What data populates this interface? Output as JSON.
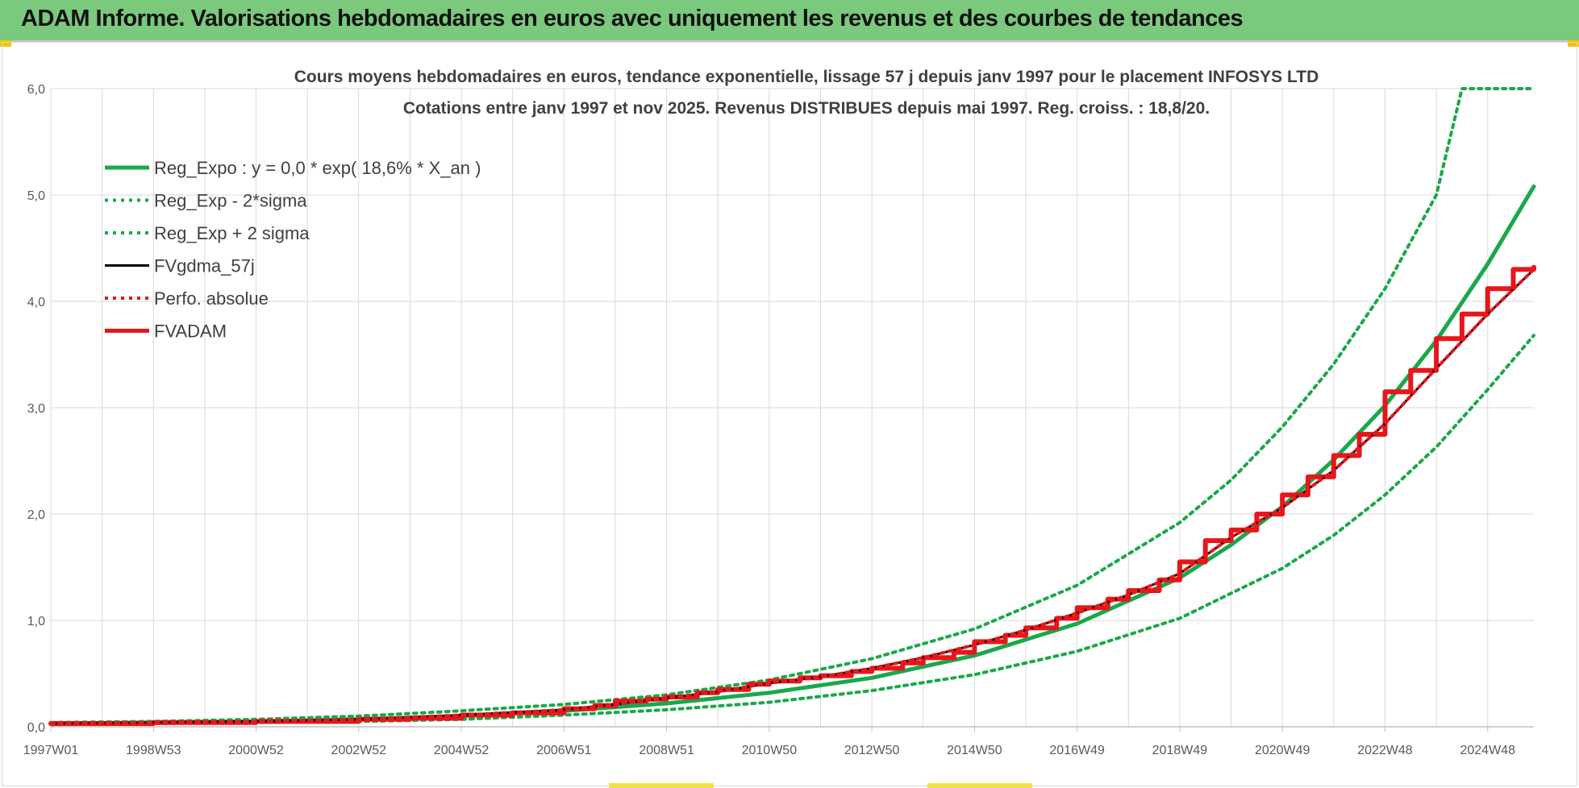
{
  "banner": {
    "title": "ADAM Informe. Valorisations hebdomadaires en euros avec uniquement les revenus et des courbes de tendances"
  },
  "colors": {
    "banner_bg": "#7ac97d",
    "green": "#1aa84a",
    "red": "#e8161b",
    "black": "#000000",
    "grid": "#d9d9d9"
  },
  "chart_data": {
    "type": "line",
    "title_line1": "Cours moyens hebdomadaires en euros, tendance exponentielle, lissage 57 j depuis janv 1997  pour le placement INFOSYS LTD",
    "title_line2": "Cotations entre janv 1997 et nov 2025. Revenus DISTRIBUES depuis mai 1997.  Reg. croiss. : 18,8/20.",
    "x_tick_labels": [
      "1997W01",
      "1998W53",
      "2000W52",
      "2002W52",
      "2004W52",
      "2006W51",
      "2008W51",
      "2010W50",
      "2012W50",
      "2014W50",
      "2016W49",
      "2018W49",
      "2020W49",
      "2022W48",
      "2024W48"
    ],
    "y_tick_labels": [
      "0,0",
      "1,0",
      "2,0",
      "3,0",
      "4,0",
      "5,0",
      "6,0"
    ],
    "ylim": [
      0,
      6
    ],
    "xlim": [
      1997.0,
      2025.9
    ],
    "grid": true,
    "legend_position": "top-left",
    "series": [
      {
        "name": "Reg_Expo : y = 0,0 * exp( 18,6% *  X_an )",
        "style": "solid-thick",
        "color": "#1aa84a",
        "x": [
          1997,
          1999,
          2001,
          2003,
          2005,
          2007,
          2009,
          2011,
          2013,
          2015,
          2017,
          2019,
          2020,
          2021,
          2022,
          2023,
          2024,
          2025,
          2025.9
        ],
        "values": [
          0.03,
          0.04,
          0.05,
          0.07,
          0.1,
          0.15,
          0.22,
          0.32,
          0.46,
          0.67,
          0.97,
          1.4,
          1.71,
          2.07,
          2.51,
          3.02,
          3.63,
          4.35,
          5.08
        ]
      },
      {
        "name": "Reg_Exp - 2*sigma",
        "style": "dotted",
        "color": "#1aa84a",
        "x": [
          1997,
          1999,
          2001,
          2003,
          2005,
          2007,
          2009,
          2011,
          2013,
          2015,
          2017,
          2019,
          2021,
          2022,
          2023,
          2024,
          2025,
          2025.9
        ],
        "values": [
          0.02,
          0.03,
          0.04,
          0.05,
          0.07,
          0.11,
          0.16,
          0.23,
          0.34,
          0.49,
          0.71,
          1.02,
          1.49,
          1.8,
          2.18,
          2.63,
          3.17,
          3.68
        ]
      },
      {
        "name": "Reg_Exp + 2 sigma",
        "style": "dotted",
        "color": "#1aa84a",
        "x": [
          1997,
          1999,
          2001,
          2003,
          2005,
          2007,
          2009,
          2011,
          2013,
          2015,
          2017,
          2019,
          2020,
          2021,
          2022,
          2023,
          2024,
          2024.5,
          2025.9
        ],
        "values": [
          0.04,
          0.05,
          0.07,
          0.1,
          0.15,
          0.21,
          0.3,
          0.44,
          0.64,
          0.92,
          1.33,
          1.92,
          2.32,
          2.82,
          3.41,
          4.12,
          5.0,
          6.0,
          6.0
        ]
      },
      {
        "name": "FVgdma_57j",
        "style": "solid",
        "color": "#000000",
        "x": [
          1997,
          1999,
          2001,
          2003,
          2005,
          2007,
          2008,
          2009,
          2010,
          2011,
          2012,
          2013,
          2014,
          2015,
          2016,
          2017,
          2018,
          2019,
          2020,
          2021,
          2022,
          2023,
          2024,
          2025,
          2025.9
        ],
        "values": [
          0.03,
          0.04,
          0.05,
          0.07,
          0.11,
          0.16,
          0.21,
          0.27,
          0.33,
          0.41,
          0.47,
          0.55,
          0.65,
          0.77,
          0.91,
          1.07,
          1.24,
          1.44,
          1.78,
          2.06,
          2.41,
          2.85,
          3.37,
          3.88,
          4.3
        ]
      },
      {
        "name": "Perfo. absolue",
        "style": "dotted",
        "color": "#e8161b",
        "x": [
          1997,
          1999,
          2001,
          2003,
          2005,
          2007,
          2008,
          2009,
          2010,
          2011,
          2012,
          2013,
          2014,
          2015,
          2016,
          2017,
          2018,
          2019,
          2020,
          2021,
          2022,
          2023,
          2024,
          2025,
          2025.9
        ],
        "values": [
          0.03,
          0.04,
          0.05,
          0.07,
          0.11,
          0.16,
          0.21,
          0.27,
          0.33,
          0.41,
          0.47,
          0.55,
          0.65,
          0.77,
          0.91,
          1.07,
          1.24,
          1.44,
          1.78,
          2.06,
          2.41,
          2.85,
          3.37,
          3.88,
          4.3
        ]
      },
      {
        "name": "FVADAM",
        "style": "step-thick",
        "color": "#e8161b",
        "x": [
          1997,
          1998,
          1999,
          2000,
          2001,
          2002,
          2003,
          2004,
          2005,
          2006,
          2007,
          2007.6,
          2008,
          2008.6,
          2009,
          2009.6,
          2010,
          2010.6,
          2011,
          2011.6,
          2012,
          2012.6,
          2013,
          2013.6,
          2014,
          2014.6,
          2015,
          2015.6,
          2016,
          2016.6,
          2017,
          2017.6,
          2018,
          2018.6,
          2019,
          2019.5,
          2020,
          2020.5,
          2021,
          2021.5,
          2022,
          2022.5,
          2023,
          2023.5,
          2024,
          2024.5,
          2025,
          2025.5,
          2025.9
        ],
        "values": [
          0.03,
          0.03,
          0.04,
          0.04,
          0.05,
          0.05,
          0.07,
          0.08,
          0.11,
          0.13,
          0.17,
          0.2,
          0.24,
          0.26,
          0.28,
          0.32,
          0.35,
          0.4,
          0.43,
          0.46,
          0.48,
          0.52,
          0.55,
          0.6,
          0.65,
          0.7,
          0.8,
          0.86,
          0.93,
          1.02,
          1.12,
          1.2,
          1.28,
          1.38,
          1.55,
          1.75,
          1.85,
          2.0,
          2.18,
          2.35,
          2.55,
          2.75,
          3.15,
          3.35,
          3.65,
          3.88,
          4.12,
          4.3,
          4.32
        ]
      }
    ]
  }
}
